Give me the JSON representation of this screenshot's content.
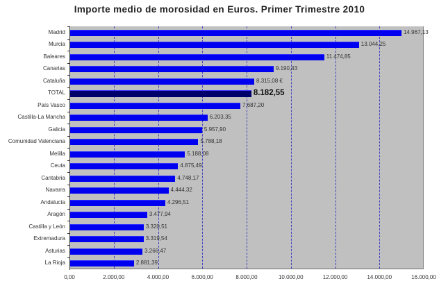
{
  "chart_data": {
    "type": "bar",
    "orientation": "horizontal",
    "title": "Importe medio de morosidad en Euros. Primer Trimestre 2010",
    "xlabel": "",
    "ylabel": "",
    "xlim": [
      0,
      16000
    ],
    "grid": true,
    "legend": null,
    "categories": [
      "Madrid",
      "Murcia",
      "Baleares",
      "Canarias",
      "Cataluña",
      "TOTAL",
      "País Vasco",
      "Castilla-La Mancha",
      "Galicia",
      "Comunidad Valenciana",
      "Melilla",
      "Ceuta",
      "Cantabria",
      "Navarra",
      "Andalucía",
      "Aragón",
      "Castilla y León",
      "Extremadura",
      "Asturias",
      "La Rioja"
    ],
    "values": [
      14967.13,
      13044.25,
      11474.85,
      9190.43,
      8315.08,
      8182.55,
      7687.2,
      6203.35,
      5957.9,
      5788.18,
      5188.08,
      4875.49,
      4748.17,
      4444.32,
      4296.51,
      3477.94,
      3320.51,
      3319.54,
      3266.47,
      2881.39
    ],
    "value_labels": [
      "14.967,13",
      "13.044,25",
      "11.474,85",
      "9.190,43",
      "8.315,08 €",
      "8.182,55",
      "7.687,20",
      "6.203,35",
      "5.957,90",
      "5.788,18",
      "5.188,08",
      "4.875,49",
      "4.748,17",
      "4.444,32",
      "4.296,51",
      "3.477,94",
      "3.320,51",
      "3.319,54",
      "3.266,47",
      "2.881,39"
    ],
    "highlight": "TOTAL",
    "x_ticks": [
      "0,00",
      "2.000,00",
      "4.000,00",
      "6.000,00",
      "8.000,00",
      "10.000,00",
      "12.000,00",
      "14.000,00",
      "16.000,00"
    ],
    "colors": {
      "bar": "#0000f0",
      "total_bar": "#00006a",
      "plot_bg": "#c0c0c0",
      "grid": "#4040c0"
    }
  }
}
